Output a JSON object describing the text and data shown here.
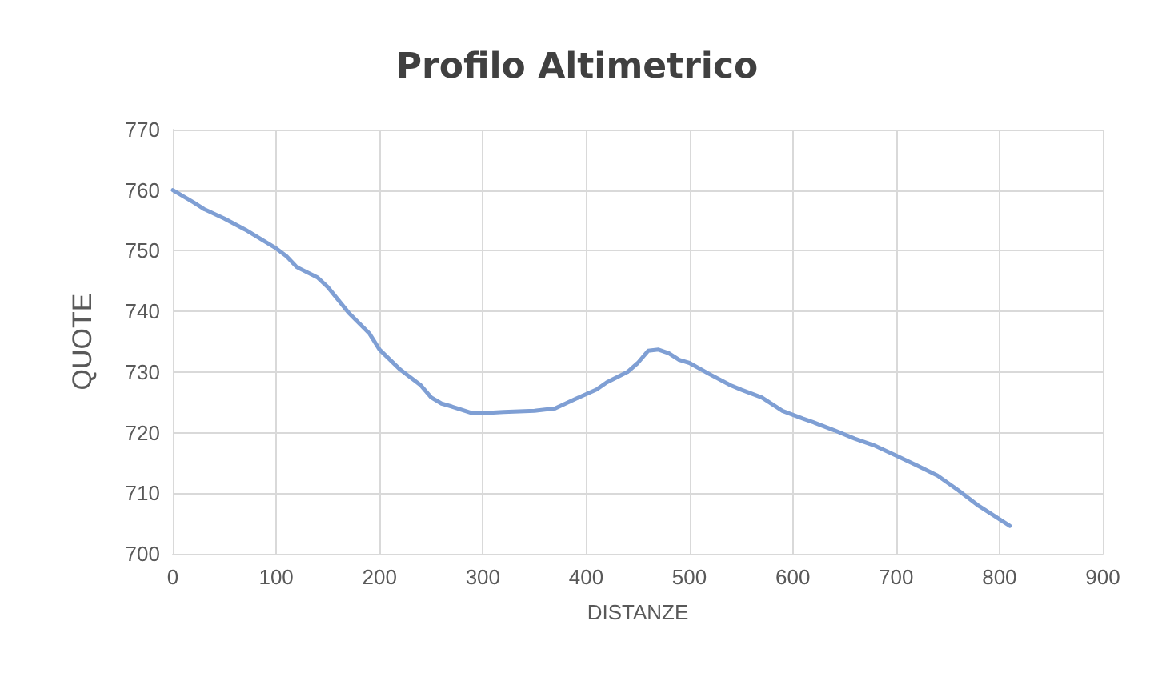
{
  "chart_data": {
    "type": "line",
    "title": "Profilo Altimetrico",
    "xlabel": "DISTANZE",
    "ylabel": "QUOTE",
    "x": [
      0,
      20,
      30,
      50,
      70,
      100,
      110,
      120,
      140,
      150,
      170,
      190,
      200,
      220,
      240,
      250,
      260,
      270,
      290,
      300,
      320,
      350,
      370,
      390,
      410,
      420,
      440,
      450,
      460,
      470,
      480,
      490,
      500,
      520,
      540,
      550,
      570,
      590,
      610,
      620,
      640,
      660,
      680,
      700,
      720,
      740,
      760,
      780,
      810
    ],
    "series": [
      {
        "color": "#7f9fd4",
        "values": [
          760,
          758,
          756.9,
          755.3,
          753.5,
          750.4,
          749.1,
          747.3,
          745.6,
          744,
          739.8,
          736.4,
          733.7,
          730.4,
          727.8,
          725.8,
          724.8,
          724.3,
          723.2,
          723.2,
          723.4,
          723.6,
          724,
          725.6,
          727.1,
          728.3,
          730,
          731.5,
          733.5,
          733.7,
          733.1,
          732,
          731.5,
          729.6,
          727.8,
          727.1,
          725.8,
          723.6,
          722.3,
          721.7,
          720.4,
          719,
          717.8,
          716.2,
          714.6,
          712.9,
          710.5,
          707.9,
          704.6
        ]
      }
    ],
    "xlim": [
      0,
      900
    ],
    "xticks": [
      0,
      100,
      200,
      300,
      400,
      500,
      600,
      700,
      800,
      900
    ],
    "ylim": [
      700,
      770
    ],
    "yticks": [
      700,
      710,
      720,
      730,
      740,
      750,
      760,
      770
    ],
    "grid": true,
    "marker": "none",
    "line_style": "solid"
  }
}
